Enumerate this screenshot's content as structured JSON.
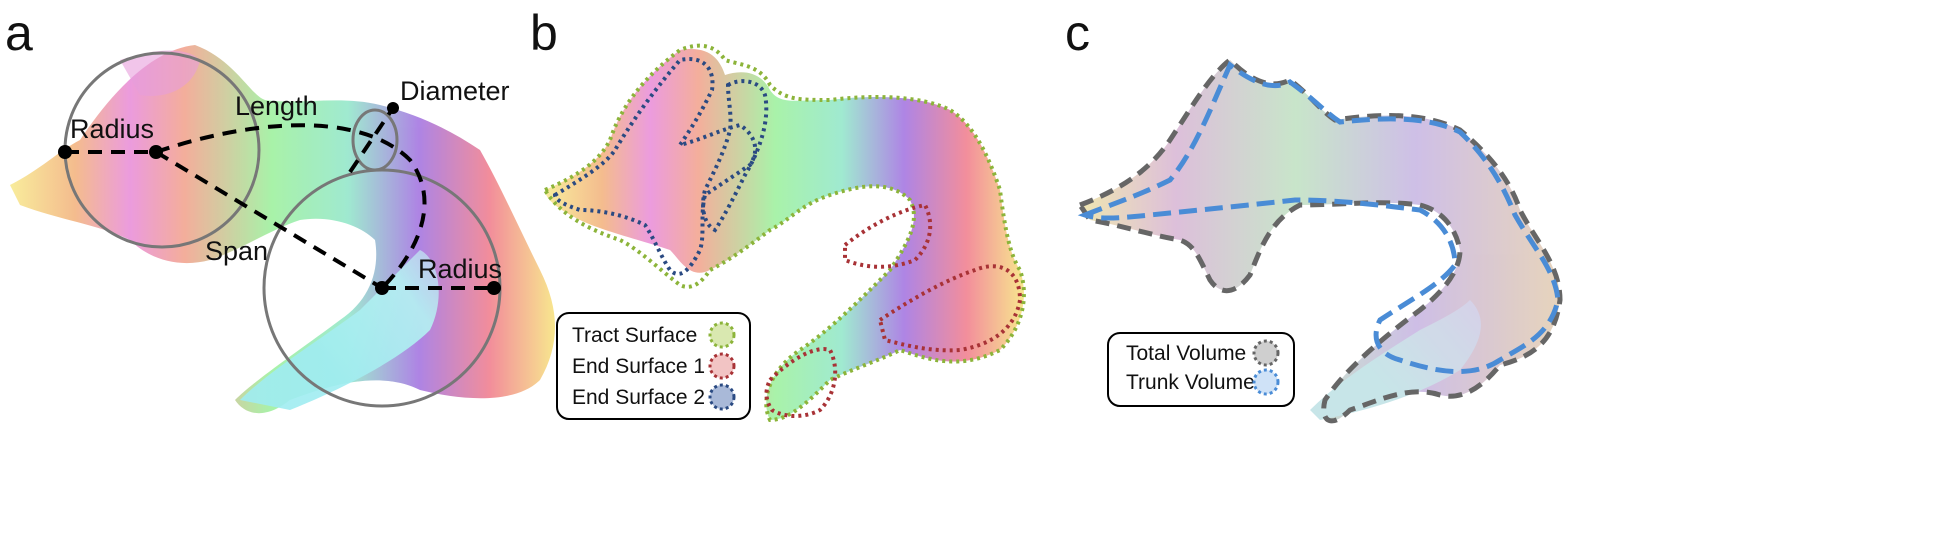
{
  "panels": {
    "a": {
      "letter": "a",
      "labels": {
        "radius_left": "Radius",
        "length": "Length",
        "diameter": "Diameter",
        "span": "Span",
        "radius_right": "Radius"
      }
    },
    "b": {
      "letter": "b",
      "legend": [
        {
          "label": "Tract Surface",
          "color": "#8cb43a",
          "fill": "#d9e8b0"
        },
        {
          "label": "End Surface 1",
          "color": "#a83236",
          "fill": "#f2c4c4"
        },
        {
          "label": "End Surface 2",
          "color": "#2a4a82",
          "fill": "#a9b9d8"
        }
      ]
    },
    "c": {
      "letter": "c",
      "legend": [
        {
          "label": "Total Volume",
          "color": "#666666",
          "fill": "#cfcfcf"
        },
        {
          "label": "Trunk Volume",
          "color": "#4a8cd6",
          "fill": "#cfe2f7"
        }
      ]
    }
  },
  "colors": {
    "construction_line": "#000000",
    "circle": "#777777"
  }
}
